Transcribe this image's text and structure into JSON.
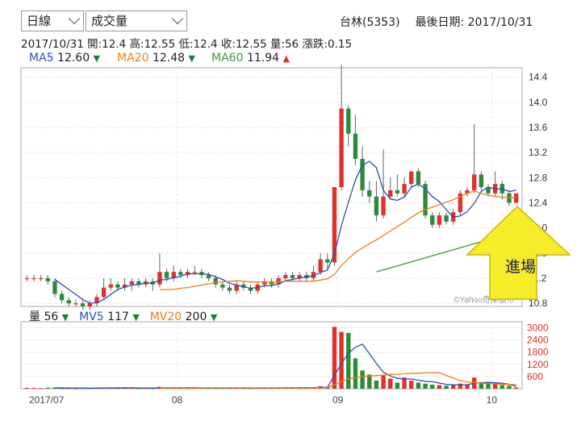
{
  "controls": {
    "period_select": "日線",
    "indicator_select": "成交量"
  },
  "header": {
    "title": "台林(5353)",
    "last_date_label": "最後日期: 2017/10/31"
  },
  "quote_line": {
    "date": "2017/10/31",
    "open": "開:12.4",
    "high": "高:12.55",
    "low": "低:12.4",
    "close": "收:12.55",
    "volume": "量:56",
    "change": "漲跌:0.15"
  },
  "ma_legend": [
    {
      "label": "MA5",
      "value": "12.60",
      "arrow": "▼",
      "color": "#2a4fb0",
      "arrow_color": "#1a7f3a"
    },
    {
      "label": "MA20",
      "value": "12.48",
      "arrow": "▼",
      "color": "#f07c12",
      "arrow_color": "#1a7f3a"
    },
    {
      "label": "MA60",
      "value": "11.94",
      "arrow": "▲",
      "color": "#3a9a3a",
      "arrow_color": "#e0302a"
    }
  ],
  "vol_legend": [
    {
      "label": "量",
      "value": "56",
      "arrow": "▼",
      "color": "#222",
      "arrow_color": "#1a7f3a"
    },
    {
      "label": "MV5",
      "value": "117",
      "arrow": "▼",
      "color": "#2a4fb0",
      "arrow_color": "#1a7f3a"
    },
    {
      "label": "MV20",
      "value": "200",
      "arrow": "▼",
      "color": "#f07c12",
      "arrow_color": "#1a7f3a"
    }
  ],
  "watermark": "©Yahoo奇摩股市",
  "annotation": {
    "text": "進場",
    "arrow_color": "#f6ec2a",
    "arrow_outline": "#c9b800"
  },
  "chart_data": {
    "type": "candlestick",
    "price_axis": {
      "ticks": [
        "14.4",
        "14.0",
        "13.6",
        "13.2",
        "12.8",
        "12.4",
        "12.0",
        "11.6",
        "11.2",
        "10.8"
      ],
      "ylim": [
        10.75,
        14.55
      ]
    },
    "volume_axis": {
      "ticks": [
        "3000",
        "2400",
        "1800",
        "1200",
        "600"
      ],
      "ylim": [
        0,
        3300
      ]
    },
    "x_labels": [
      "2017/07",
      "08",
      "09",
      "10"
    ],
    "x_label_positions": [
      0,
      22,
      45,
      67
    ],
    "candles": [
      [
        11.2,
        11.2,
        11.15,
        11.25
      ],
      [
        11.2,
        11.2,
        11.15,
        11.25
      ],
      [
        11.2,
        11.2,
        11.15,
        11.25
      ],
      [
        11.2,
        11.15,
        11.1,
        11.25
      ],
      [
        11.15,
        10.95,
        10.9,
        11.2
      ],
      [
        10.95,
        10.85,
        10.8,
        11.0
      ],
      [
        10.85,
        10.8,
        10.75,
        10.9
      ],
      [
        10.8,
        10.8,
        10.75,
        10.85
      ],
      [
        10.8,
        10.75,
        10.7,
        10.85
      ],
      [
        10.75,
        10.8,
        10.7,
        10.85
      ],
      [
        10.8,
        10.9,
        10.75,
        10.95
      ],
      [
        10.9,
        11.05,
        10.85,
        11.2
      ],
      [
        11.05,
        11.1,
        11.0,
        11.2
      ],
      [
        11.1,
        11.05,
        11.0,
        11.15
      ],
      [
        11.05,
        11.1,
        11.0,
        11.2
      ],
      [
        11.1,
        11.15,
        11.0,
        11.2
      ],
      [
        11.15,
        11.1,
        11.05,
        11.2
      ],
      [
        11.1,
        11.15,
        11.05,
        11.2
      ],
      [
        11.15,
        11.1,
        11.0,
        11.2
      ],
      [
        11.1,
        11.3,
        11.05,
        11.6
      ],
      [
        11.3,
        11.2,
        11.15,
        11.35
      ],
      [
        11.2,
        11.3,
        11.15,
        11.4
      ],
      [
        11.3,
        11.25,
        11.2,
        11.35
      ],
      [
        11.25,
        11.3,
        11.2,
        11.35
      ],
      [
        11.3,
        11.3,
        11.25,
        11.4
      ],
      [
        11.3,
        11.25,
        11.2,
        11.35
      ],
      [
        11.25,
        11.2,
        11.15,
        11.3
      ],
      [
        11.2,
        11.1,
        11.05,
        11.25
      ],
      [
        11.1,
        11.05,
        11.0,
        11.15
      ],
      [
        11.05,
        11.0,
        10.95,
        11.1
      ],
      [
        11.0,
        11.1,
        10.95,
        11.15
      ],
      [
        11.1,
        11.05,
        11.0,
        11.15
      ],
      [
        11.05,
        11.0,
        10.95,
        11.1
      ],
      [
        11.0,
        11.1,
        10.95,
        11.15
      ],
      [
        11.1,
        11.15,
        11.05,
        11.2
      ],
      [
        11.15,
        11.1,
        11.05,
        11.2
      ],
      [
        11.1,
        11.2,
        11.05,
        11.25
      ],
      [
        11.2,
        11.25,
        11.15,
        11.3
      ],
      [
        11.25,
        11.2,
        11.15,
        11.3
      ],
      [
        11.2,
        11.25,
        11.15,
        11.3
      ],
      [
        11.25,
        11.2,
        11.15,
        11.3
      ],
      [
        11.2,
        11.3,
        11.15,
        11.4
      ],
      [
        11.3,
        11.5,
        11.25,
        11.6
      ],
      [
        11.5,
        11.45,
        11.35,
        11.6
      ],
      [
        11.45,
        12.65,
        11.4,
        12.65
      ],
      [
        12.65,
        13.9,
        12.6,
        14.6
      ],
      [
        13.9,
        13.5,
        13.3,
        13.95
      ],
      [
        13.5,
        13.1,
        13.0,
        13.8
      ],
      [
        13.1,
        12.6,
        12.5,
        13.3
      ],
      [
        12.6,
        12.5,
        12.4,
        12.75
      ],
      [
        12.5,
        12.2,
        12.1,
        12.75
      ],
      [
        12.2,
        12.5,
        12.15,
        13.25
      ],
      [
        12.5,
        12.6,
        12.45,
        12.8
      ],
      [
        12.6,
        12.55,
        12.5,
        12.85
      ],
      [
        12.55,
        12.7,
        12.5,
        12.8
      ],
      [
        12.7,
        12.9,
        12.65,
        12.9
      ],
      [
        12.9,
        12.7,
        12.65,
        12.95
      ],
      [
        12.7,
        12.2,
        12.15,
        12.75
      ],
      [
        12.2,
        12.05,
        12.0,
        12.25
      ],
      [
        12.05,
        12.2,
        12.0,
        12.25
      ],
      [
        12.2,
        12.1,
        12.05,
        12.25
      ],
      [
        12.1,
        12.25,
        12.05,
        12.3
      ],
      [
        12.25,
        12.55,
        12.2,
        12.6
      ],
      [
        12.55,
        12.6,
        12.5,
        12.65
      ],
      [
        12.6,
        12.85,
        12.55,
        13.65
      ],
      [
        12.85,
        12.65,
        12.6,
        12.9
      ],
      [
        12.65,
        12.55,
        12.5,
        12.7
      ],
      [
        12.55,
        12.7,
        12.5,
        12.9
      ],
      [
        12.7,
        12.55,
        12.45,
        12.75
      ],
      [
        12.55,
        12.4,
        12.35,
        12.6
      ],
      [
        12.4,
        12.55,
        12.4,
        12.55
      ]
    ],
    "volume": [
      40,
      35,
      30,
      50,
      60,
      30,
      25,
      20,
      35,
      30,
      40,
      60,
      45,
      30,
      35,
      40,
      30,
      35,
      30,
      90,
      40,
      50,
      35,
      30,
      45,
      40,
      35,
      50,
      40,
      30,
      45,
      35,
      30,
      50,
      45,
      40,
      55,
      60,
      45,
      50,
      40,
      60,
      120,
      90,
      3050,
      2800,
      2750,
      1500,
      900,
      700,
      400,
      650,
      500,
      300,
      550,
      400,
      300,
      250,
      200,
      180,
      150,
      200,
      250,
      200,
      550,
      300,
      250,
      220,
      180,
      150,
      56
    ],
    "ma5": [
      null,
      null,
      null,
      null,
      11.18,
      11.1,
      11.02,
      10.94,
      10.86,
      10.8,
      10.81,
      10.86,
      10.94,
      11.02,
      11.06,
      11.09,
      11.1,
      11.12,
      11.12,
      11.17,
      11.18,
      11.21,
      11.23,
      11.27,
      11.27,
      11.27,
      11.26,
      11.22,
      11.18,
      11.12,
      11.09,
      11.06,
      11.04,
      11.05,
      11.08,
      11.08,
      11.11,
      11.16,
      11.18,
      11.2,
      11.22,
      11.24,
      11.29,
      11.33,
      11.59,
      12.04,
      12.41,
      12.76,
      13.0,
      13.06,
      12.96,
      12.6,
      12.46,
      12.44,
      12.49,
      12.65,
      12.7,
      12.62,
      12.5,
      12.42,
      12.29,
      12.17,
      12.19,
      12.26,
      12.39,
      12.58,
      12.65,
      12.62,
      12.62,
      12.58,
      12.6
    ],
    "ma20": [
      null,
      null,
      null,
      null,
      null,
      null,
      null,
      null,
      null,
      null,
      null,
      null,
      null,
      null,
      null,
      null,
      null,
      null,
      null,
      11.02,
      11.02,
      11.02,
      11.04,
      11.05,
      11.07,
      11.09,
      11.11,
      11.13,
      11.14,
      11.15,
      11.16,
      11.15,
      11.14,
      11.14,
      11.14,
      11.13,
      11.14,
      11.15,
      11.15,
      11.15,
      11.15,
      11.15,
      11.17,
      11.19,
      11.26,
      11.4,
      11.51,
      11.61,
      11.68,
      11.75,
      11.81,
      11.88,
      11.95,
      12.02,
      12.09,
      12.17,
      12.24,
      12.29,
      12.33,
      12.37,
      12.41,
      12.45,
      12.5,
      12.55,
      12.59,
      12.55,
      12.52,
      12.5,
      12.49,
      12.48,
      12.48
    ],
    "ma60": {
      "from_index": 50,
      "start": 11.3,
      "end": 11.94
    },
    "mv5": [
      null,
      null,
      null,
      null,
      43,
      39,
      37,
      37,
      34,
      28,
      30,
      37,
      38,
      40,
      42,
      42,
      36,
      34,
      34,
      45,
      47,
      49,
      49,
      49,
      50,
      40,
      41,
      41,
      38,
      40,
      40,
      40,
      36,
      38,
      41,
      41,
      45,
      50,
      49,
      50,
      50,
      52,
      66,
      73,
      672,
      1224,
      1762,
      2038,
      2200,
      1730,
      1250,
      810,
      630,
      510,
      480,
      480,
      420,
      360,
      340,
      277,
      216,
      196,
      196,
      196,
      270,
      300,
      310,
      290,
      270,
      220,
      117
    ],
    "mv20": [
      null,
      null,
      null,
      null,
      null,
      null,
      null,
      null,
      null,
      null,
      null,
      null,
      null,
      null,
      null,
      null,
      null,
      null,
      null,
      40,
      40,
      41,
      41,
      41,
      41,
      42,
      42,
      43,
      43,
      43,
      43,
      42,
      42,
      42,
      43,
      43,
      43,
      44,
      45,
      43,
      43,
      44,
      48,
      51,
      201,
      341,
      477,
      550,
      594,
      628,
      646,
      676,
      698,
      712,
      737,
      755,
      768,
      778,
      786,
      793,
      653,
      523,
      398,
      333,
      300,
      275,
      255,
      238,
      225,
      210,
      200
    ]
  }
}
